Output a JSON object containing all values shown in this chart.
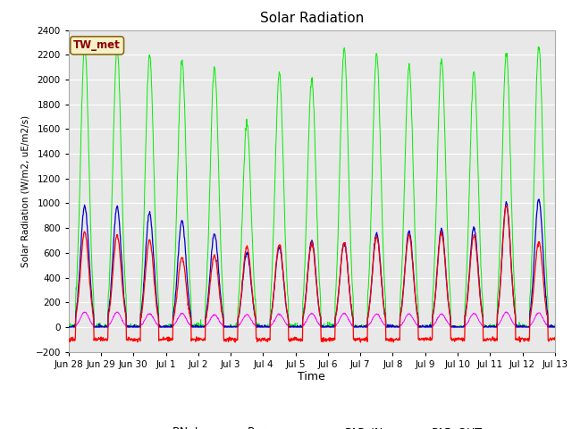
{
  "title": "Solar Radiation",
  "xlabel": "Time",
  "ylabel": "Solar Radiation (W/m2, uE/m2/s)",
  "ylim": [
    -200,
    2400
  ],
  "yticks": [
    -200,
    0,
    200,
    400,
    600,
    800,
    1000,
    1200,
    1400,
    1600,
    1800,
    2000,
    2200,
    2400
  ],
  "fig_bg_color": "#ffffff",
  "plot_bg_color": "#e8e8e8",
  "grid_color": "#ffffff",
  "station_label": "TW_met",
  "station_label_color": "#8B0000",
  "station_box_color": "#f5f0c8",
  "station_box_edge": "#8B6914",
  "series_colors": {
    "RNet": "#ff0000",
    "Pyranom": "#0000cd",
    "PAR_IN": "#00ee00",
    "PAR_OUT": "#ff00ff"
  },
  "day_labels": [
    "Jun 28",
    "Jun 29",
    "Jun 30",
    "Jul 1",
    "Jul 2",
    "Jul 3",
    "Jul 4",
    "Jul 5",
    "Jul 6",
    "Jul 7",
    "Jul 8",
    "Jul 9",
    "Jul 10",
    "Jul 11",
    "Jul 12",
    "Jul 13"
  ],
  "num_days": 15,
  "n_points_per_day": 96,
  "par_in_peaks": [
    2280,
    2250,
    2200,
    2150,
    2100,
    1650,
    2050,
    2000,
    2250,
    2200,
    2100,
    2160,
    2060,
    2200,
    2270
  ],
  "pyranom_peaks": [
    980,
    970,
    920,
    860,
    750,
    600,
    650,
    700,
    680,
    760,
    775,
    790,
    800,
    1000,
    1030
  ],
  "rnet_peaks": [
    770,
    740,
    700,
    560,
    580,
    650,
    670,
    670,
    680,
    730,
    745,
    760,
    740,
    980,
    690
  ],
  "par_out_peaks": [
    120,
    120,
    110,
    110,
    100,
    100,
    105,
    110,
    110,
    105,
    105,
    105,
    110,
    120,
    115
  ],
  "rnet_night_val": -100,
  "line_width": 0.7
}
